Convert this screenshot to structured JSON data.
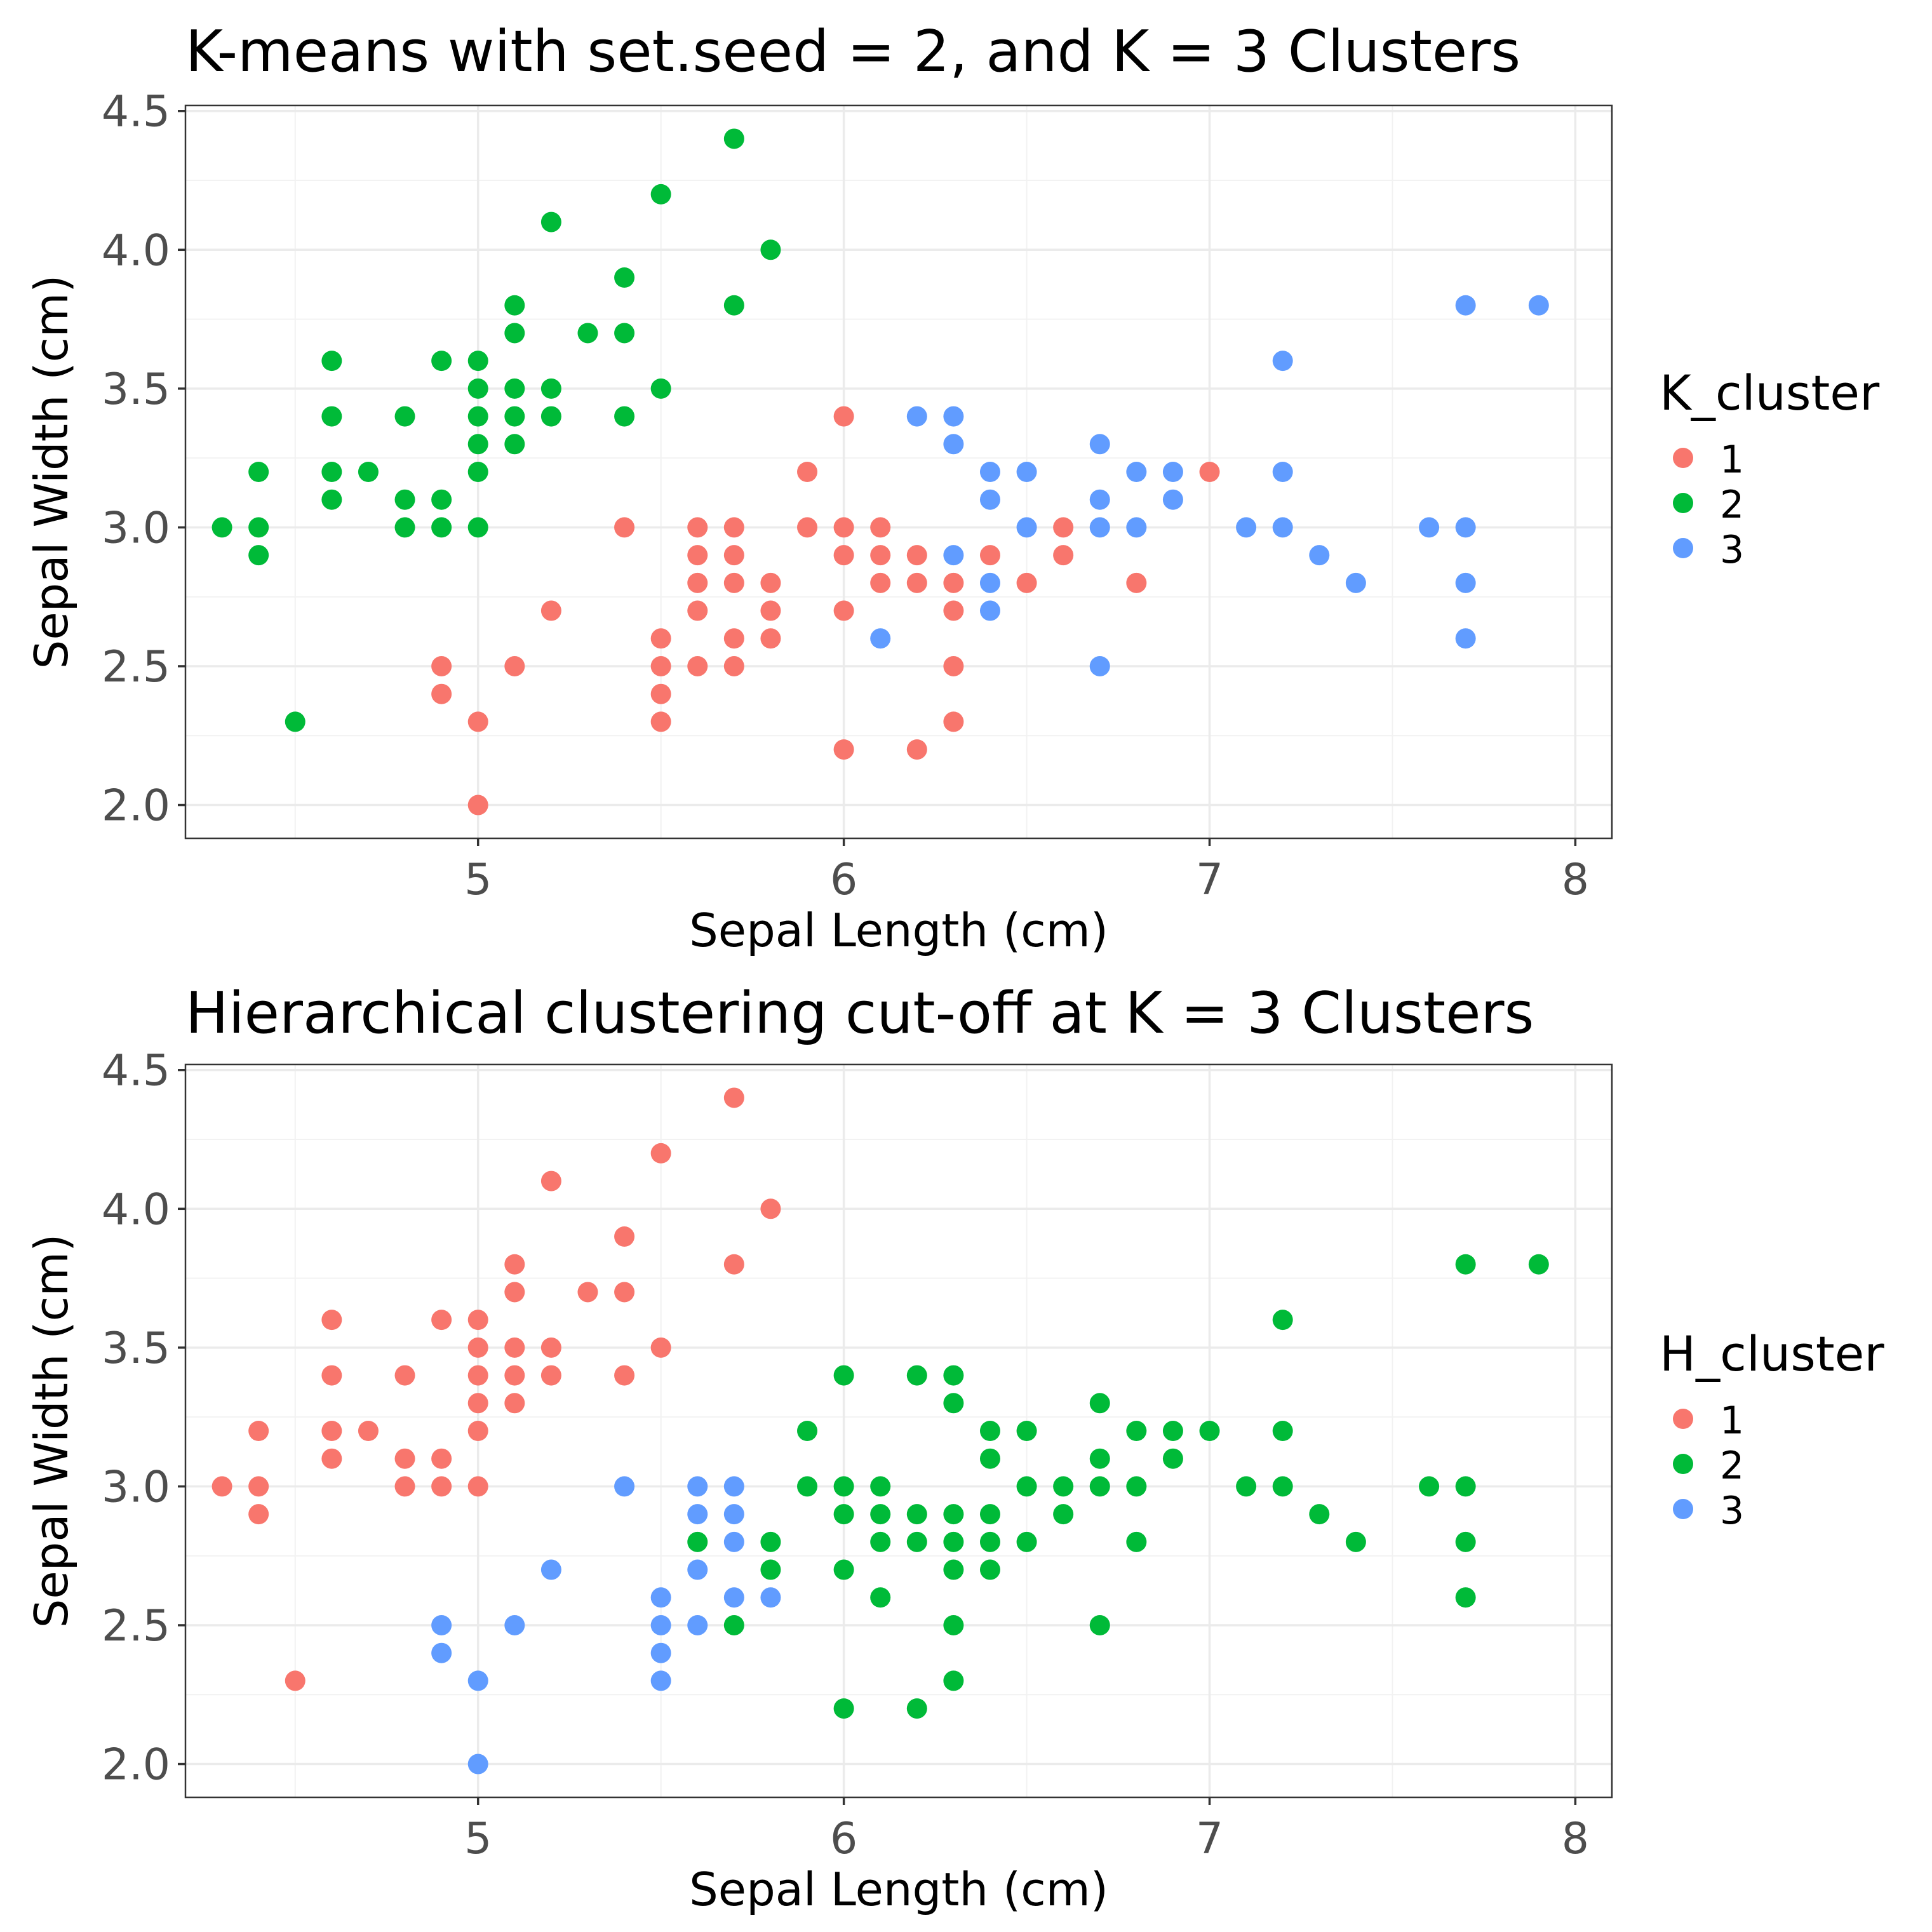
{
  "chart_data": [
    {
      "type": "scatter",
      "title": "K-means with set.seed = 2, and K = 3 Clusters",
      "xlabel": "Sepal Length (cm)",
      "ylabel": "Sepal Width (cm)",
      "xlim": [
        4.2,
        8.1
      ],
      "ylim": [
        1.88,
        4.52
      ],
      "xticks": [
        5,
        6,
        7,
        8
      ],
      "xtick_labels": [
        "5",
        "6",
        "7",
        "8"
      ],
      "yticks": [
        2.0,
        2.5,
        3.0,
        3.5,
        4.0,
        4.5
      ],
      "ytick_labels": [
        "2.0",
        "2.5",
        "3.0",
        "3.5",
        "4.0",
        "4.5"
      ],
      "grid": true,
      "legend": {
        "title": "K_cluster",
        "position": "right"
      },
      "series": [
        {
          "name": "1",
          "color": "#F8766D",
          "points": [
            [
              4.9,
              2.5
            ],
            [
              4.9,
              2.4
            ],
            [
              5.0,
              2.3
            ],
            [
              5.0,
              2.0
            ],
            [
              5.1,
              2.5
            ],
            [
              5.2,
              2.7
            ],
            [
              5.4,
              3.0
            ],
            [
              5.5,
              2.6
            ],
            [
              5.5,
              2.5
            ],
            [
              5.5,
              2.4
            ],
            [
              5.5,
              2.3
            ],
            [
              5.6,
              3.0
            ],
            [
              5.6,
              2.9
            ],
            [
              5.6,
              2.8
            ],
            [
              5.6,
              2.7
            ],
            [
              5.6,
              2.5
            ],
            [
              5.7,
              3.0
            ],
            [
              5.7,
              2.9
            ],
            [
              5.7,
              2.8
            ],
            [
              5.7,
              2.6
            ],
            [
              5.7,
              2.5
            ],
            [
              5.8,
              2.8
            ],
            [
              5.8,
              2.7
            ],
            [
              5.8,
              2.6
            ],
            [
              5.9,
              3.2
            ],
            [
              5.9,
              3.0
            ],
            [
              6.0,
              3.4
            ],
            [
              6.0,
              3.0
            ],
            [
              6.0,
              2.9
            ],
            [
              6.0,
              2.7
            ],
            [
              6.0,
              2.2
            ],
            [
              6.1,
              3.0
            ],
            [
              6.1,
              2.9
            ],
            [
              6.1,
              2.8
            ],
            [
              6.2,
              2.9
            ],
            [
              6.2,
              2.8
            ],
            [
              6.2,
              2.2
            ],
            [
              6.3,
              2.8
            ],
            [
              6.3,
              2.7
            ],
            [
              6.3,
              2.5
            ],
            [
              6.3,
              2.3
            ],
            [
              6.4,
              2.9
            ],
            [
              6.5,
              2.8
            ],
            [
              6.6,
              3.0
            ],
            [
              6.6,
              2.9
            ],
            [
              6.8,
              2.8
            ],
            [
              7.0,
              3.2
            ]
          ]
        },
        {
          "name": "2",
          "color": "#00BA38",
          "points": [
            [
              4.3,
              3.0
            ],
            [
              4.4,
              3.2
            ],
            [
              4.4,
              3.0
            ],
            [
              4.4,
              2.9
            ],
            [
              4.5,
              2.3
            ],
            [
              4.6,
              3.6
            ],
            [
              4.6,
              3.4
            ],
            [
              4.6,
              3.2
            ],
            [
              4.6,
              3.1
            ],
            [
              4.7,
              3.2
            ],
            [
              4.8,
              3.4
            ],
            [
              4.8,
              3.1
            ],
            [
              4.8,
              3.0
            ],
            [
              4.9,
              3.6
            ],
            [
              4.9,
              3.1
            ],
            [
              4.9,
              3.0
            ],
            [
              5.0,
              3.6
            ],
            [
              5.0,
              3.5
            ],
            [
              5.0,
              3.4
            ],
            [
              5.0,
              3.3
            ],
            [
              5.0,
              3.2
            ],
            [
              5.0,
              3.0
            ],
            [
              5.1,
              3.8
            ],
            [
              5.1,
              3.7
            ],
            [
              5.1,
              3.5
            ],
            [
              5.1,
              3.4
            ],
            [
              5.1,
              3.3
            ],
            [
              5.2,
              4.1
            ],
            [
              5.2,
              3.5
            ],
            [
              5.2,
              3.4
            ],
            [
              5.3,
              3.7
            ],
            [
              5.4,
              3.9
            ],
            [
              5.4,
              3.7
            ],
            [
              5.4,
              3.4
            ],
            [
              5.5,
              4.2
            ],
            [
              5.5,
              3.5
            ],
            [
              5.7,
              4.4
            ],
            [
              5.7,
              3.8
            ],
            [
              5.8,
              4.0
            ]
          ]
        },
        {
          "name": "3",
          "color": "#619CFF",
          "points": [
            [
              6.1,
              2.6
            ],
            [
              6.2,
              3.4
            ],
            [
              6.3,
              3.4
            ],
            [
              6.3,
              3.3
            ],
            [
              6.3,
              2.9
            ],
            [
              6.4,
              3.2
            ],
            [
              6.4,
              3.1
            ],
            [
              6.4,
              2.8
            ],
            [
              6.4,
              2.7
            ],
            [
              6.5,
              3.2
            ],
            [
              6.5,
              3.0
            ],
            [
              6.7,
              3.3
            ],
            [
              6.7,
              3.1
            ],
            [
              6.7,
              3.0
            ],
            [
              6.7,
              2.5
            ],
            [
              6.8,
              3.2
            ],
            [
              6.8,
              3.0
            ],
            [
              6.9,
              3.2
            ],
            [
              6.9,
              3.1
            ],
            [
              7.1,
              3.0
            ],
            [
              7.2,
              3.6
            ],
            [
              7.2,
              3.2
            ],
            [
              7.2,
              3.0
            ],
            [
              7.3,
              2.9
            ],
            [
              7.4,
              2.8
            ],
            [
              7.6,
              3.0
            ],
            [
              7.7,
              3.8
            ],
            [
              7.7,
              3.0
            ],
            [
              7.7,
              2.8
            ],
            [
              7.7,
              2.6
            ],
            [
              7.9,
              3.8
            ]
          ]
        }
      ]
    },
    {
      "type": "scatter",
      "title": "Hierarchical clustering cut-off at K = 3 Clusters",
      "xlabel": "Sepal Length (cm)",
      "ylabel": "Sepal Width (cm)",
      "xlim": [
        4.2,
        8.1
      ],
      "ylim": [
        1.88,
        4.52
      ],
      "xticks": [
        5,
        6,
        7,
        8
      ],
      "xtick_labels": [
        "5",
        "6",
        "7",
        "8"
      ],
      "yticks": [
        2.0,
        2.5,
        3.0,
        3.5,
        4.0,
        4.5
      ],
      "ytick_labels": [
        "2.0",
        "2.5",
        "3.0",
        "3.5",
        "4.0",
        "4.5"
      ],
      "grid": true,
      "legend": {
        "title": "H_cluster",
        "position": "right"
      },
      "series": [
        {
          "name": "1",
          "color": "#F8766D",
          "points": [
            [
              4.3,
              3.0
            ],
            [
              4.4,
              3.2
            ],
            [
              4.4,
              3.0
            ],
            [
              4.4,
              2.9
            ],
            [
              4.5,
              2.3
            ],
            [
              4.6,
              3.6
            ],
            [
              4.6,
              3.4
            ],
            [
              4.6,
              3.2
            ],
            [
              4.6,
              3.1
            ],
            [
              4.7,
              3.2
            ],
            [
              4.8,
              3.4
            ],
            [
              4.8,
              3.1
            ],
            [
              4.8,
              3.0
            ],
            [
              4.9,
              3.6
            ],
            [
              4.9,
              3.1
            ],
            [
              4.9,
              3.0
            ],
            [
              5.0,
              3.6
            ],
            [
              5.0,
              3.5
            ],
            [
              5.0,
              3.4
            ],
            [
              5.0,
              3.3
            ],
            [
              5.0,
              3.2
            ],
            [
              5.0,
              3.0
            ],
            [
              5.1,
              3.8
            ],
            [
              5.1,
              3.7
            ],
            [
              5.1,
              3.5
            ],
            [
              5.1,
              3.4
            ],
            [
              5.1,
              3.3
            ],
            [
              5.2,
              4.1
            ],
            [
              5.2,
              3.5
            ],
            [
              5.2,
              3.4
            ],
            [
              5.3,
              3.7
            ],
            [
              5.4,
              3.9
            ],
            [
              5.4,
              3.7
            ],
            [
              5.4,
              3.4
            ],
            [
              5.5,
              4.2
            ],
            [
              5.5,
              3.5
            ],
            [
              5.7,
              4.4
            ],
            [
              5.7,
              3.8
            ],
            [
              5.8,
              4.0
            ]
          ]
        },
        {
          "name": "2",
          "color": "#00BA38",
          "points": [
            [
              5.6,
              2.8
            ],
            [
              5.7,
              2.5
            ],
            [
              5.8,
              2.8
            ],
            [
              5.8,
              2.7
            ],
            [
              5.9,
              3.2
            ],
            [
              5.9,
              3.0
            ],
            [
              6.0,
              3.4
            ],
            [
              6.0,
              3.0
            ],
            [
              6.0,
              2.9
            ],
            [
              6.0,
              2.7
            ],
            [
              6.0,
              2.2
            ],
            [
              6.1,
              3.0
            ],
            [
              6.1,
              2.9
            ],
            [
              6.1,
              2.8
            ],
            [
              6.1,
              2.6
            ],
            [
              6.2,
              3.4
            ],
            [
              6.2,
              2.9
            ],
            [
              6.2,
              2.8
            ],
            [
              6.2,
              2.2
            ],
            [
              6.3,
              3.4
            ],
            [
              6.3,
              3.3
            ],
            [
              6.3,
              2.9
            ],
            [
              6.3,
              2.8
            ],
            [
              6.3,
              2.7
            ],
            [
              6.3,
              2.5
            ],
            [
              6.3,
              2.3
            ],
            [
              6.4,
              3.2
            ],
            [
              6.4,
              3.1
            ],
            [
              6.4,
              2.9
            ],
            [
              6.4,
              2.8
            ],
            [
              6.4,
              2.7
            ],
            [
              6.5,
              3.2
            ],
            [
              6.5,
              3.0
            ],
            [
              6.5,
              2.8
            ],
            [
              6.6,
              3.0
            ],
            [
              6.6,
              2.9
            ],
            [
              6.7,
              3.3
            ],
            [
              6.7,
              3.1
            ],
            [
              6.7,
              3.0
            ],
            [
              6.7,
              2.5
            ],
            [
              6.8,
              3.2
            ],
            [
              6.8,
              3.0
            ],
            [
              6.8,
              2.8
            ],
            [
              6.9,
              3.2
            ],
            [
              6.9,
              3.1
            ],
            [
              7.0,
              3.2
            ],
            [
              7.1,
              3.0
            ],
            [
              7.2,
              3.6
            ],
            [
              7.2,
              3.2
            ],
            [
              7.2,
              3.0
            ],
            [
              7.3,
              2.9
            ],
            [
              7.4,
              2.8
            ],
            [
              7.6,
              3.0
            ],
            [
              7.7,
              3.8
            ],
            [
              7.7,
              3.0
            ],
            [
              7.7,
              2.8
            ],
            [
              7.7,
              2.6
            ],
            [
              7.9,
              3.8
            ]
          ]
        },
        {
          "name": "3",
          "color": "#619CFF",
          "points": [
            [
              4.9,
              2.5
            ],
            [
              4.9,
              2.4
            ],
            [
              5.0,
              2.3
            ],
            [
              5.0,
              2.0
            ],
            [
              5.1,
              2.5
            ],
            [
              5.2,
              2.7
            ],
            [
              5.4,
              3.0
            ],
            [
              5.5,
              2.6
            ],
            [
              5.5,
              2.5
            ],
            [
              5.5,
              2.4
            ],
            [
              5.5,
              2.3
            ],
            [
              5.6,
              3.0
            ],
            [
              5.6,
              2.9
            ],
            [
              5.6,
              2.7
            ],
            [
              5.6,
              2.5
            ],
            [
              5.7,
              3.0
            ],
            [
              5.7,
              2.9
            ],
            [
              5.7,
              2.8
            ],
            [
              5.7,
              2.6
            ],
            [
              5.8,
              2.6
            ]
          ]
        }
      ]
    }
  ]
}
